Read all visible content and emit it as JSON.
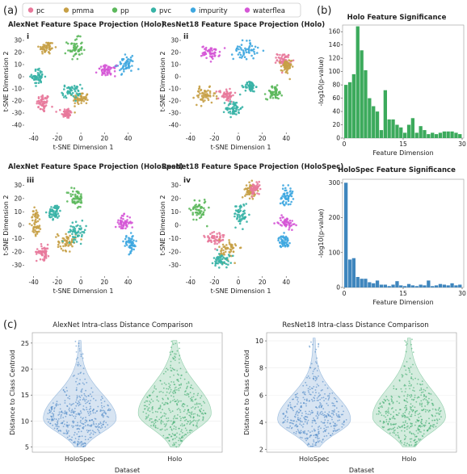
{
  "figure": {
    "panel_labels": [
      "(a)",
      "(b)",
      "(c)"
    ],
    "legend": [
      {
        "label": "pc",
        "color": "#e8799b"
      },
      {
        "label": "pmma",
        "color": "#c7a046"
      },
      {
        "label": "pp",
        "color": "#5cb85c"
      },
      {
        "label": "pvc",
        "color": "#37b3a6"
      },
      {
        "label": "impurity",
        "color": "#3ea7e0"
      },
      {
        "label": "waterflea",
        "color": "#d557d6"
      }
    ]
  },
  "chart_data": [
    {
      "type": "scatter",
      "title": "AlexNet Feature Space Projection (Holo)",
      "tag": "i",
      "xlabel": "t-SNE Dimension 1",
      "ylabel": "t-SNE Dimension 2",
      "xticks": [
        -40,
        -20,
        0,
        20,
        40
      ],
      "yticks": [
        -40,
        -30,
        -20,
        -10,
        0,
        10,
        20,
        30
      ],
      "xlim": [
        -48,
        52
      ],
      "ylim": [
        -46,
        38
      ],
      "clusters": [
        {
          "class": "pc",
          "cx": -32,
          "cy": -22,
          "sx": 5,
          "sy": 7
        },
        {
          "class": "pc",
          "cx": -12,
          "cy": -30,
          "sx": 4,
          "sy": 4
        },
        {
          "class": "pmma",
          "cx": -29,
          "cy": 24,
          "sx": 6,
          "sy": 5
        },
        {
          "class": "pmma",
          "cx": 0,
          "cy": -18,
          "sx": 6,
          "sy": 5
        },
        {
          "class": "pp",
          "cx": -5,
          "cy": 23,
          "sx": 6,
          "sy": 8
        },
        {
          "class": "pvc",
          "cx": -36,
          "cy": 0,
          "sx": 5,
          "sy": 6
        },
        {
          "class": "pvc",
          "cx": -8,
          "cy": -12,
          "sx": 7,
          "sy": 5
        },
        {
          "class": "impurity",
          "cx": 38,
          "cy": 10,
          "sx": 7,
          "sy": 6
        },
        {
          "class": "waterflea",
          "cx": 22,
          "cy": 5,
          "sx": 7,
          "sy": 4
        }
      ]
    },
    {
      "type": "scatter",
      "title": "ResNet18 Feature Space Projection (Holo)",
      "tag": "ii",
      "xlabel": "t-SNE Dimension 1",
      "ylabel": "t-SNE Dimension 2",
      "xticks": [
        -40,
        -20,
        0,
        20,
        40
      ],
      "yticks": [
        -40,
        -30,
        -20,
        -10,
        0,
        10,
        20,
        30
      ],
      "xlim": [
        -48,
        52
      ],
      "ylim": [
        -46,
        38
      ],
      "clusters": [
        {
          "class": "waterflea",
          "cx": -23,
          "cy": 20,
          "sx": 7,
          "sy": 5
        },
        {
          "class": "impurity",
          "cx": 6,
          "cy": 22,
          "sx": 9,
          "sy": 7
        },
        {
          "class": "pc",
          "cx": 38,
          "cy": 14,
          "sx": 5,
          "sy": 5
        },
        {
          "class": "pmma",
          "cx": 40,
          "cy": 8,
          "sx": 4,
          "sy": 6
        },
        {
          "class": "pp",
          "cx": 30,
          "cy": -13,
          "sx": 6,
          "sy": 5
        },
        {
          "class": "pmma",
          "cx": -28,
          "cy": -16,
          "sx": 8,
          "sy": 6
        },
        {
          "class": "pc",
          "cx": -10,
          "cy": -15,
          "sx": 6,
          "sy": 5
        },
        {
          "class": "pvc",
          "cx": -4,
          "cy": -26,
          "sx": 6,
          "sy": 6
        },
        {
          "class": "pvc",
          "cx": 10,
          "cy": -8,
          "sx": 4,
          "sy": 4
        }
      ]
    },
    {
      "type": "scatter",
      "title": "AlexNet Feature Space Projection (HoloSpec)",
      "tag": "iii",
      "xlabel": "t-SNE Dimension 1",
      "ylabel": "t-SNE Dimension 2",
      "xticks": [
        -40,
        -20,
        0,
        20,
        40
      ],
      "yticks": [
        -30,
        -20,
        -10,
        0,
        10,
        20,
        30
      ],
      "xlim": [
        -48,
        52
      ],
      "ylim": [
        -38,
        38
      ],
      "clusters": [
        {
          "class": "pp",
          "cx": -4,
          "cy": 20,
          "sx": 6,
          "sy": 7
        },
        {
          "class": "pmma",
          "cx": -38,
          "cy": 2,
          "sx": 4,
          "sy": 10
        },
        {
          "class": "pvc",
          "cx": -22,
          "cy": 10,
          "sx": 5,
          "sy": 5
        },
        {
          "class": "pc",
          "cx": -32,
          "cy": -20,
          "sx": 5,
          "sy": 5
        },
        {
          "class": "pmma",
          "cx": -12,
          "cy": -12,
          "sx": 7,
          "sy": 6
        },
        {
          "class": "pvc",
          "cx": -3,
          "cy": -5,
          "sx": 7,
          "sy": 6
        },
        {
          "class": "waterflea",
          "cx": 36,
          "cy": 2,
          "sx": 6,
          "sy": 5
        },
        {
          "class": "impurity",
          "cx": 42,
          "cy": -14,
          "sx": 5,
          "sy": 6
        }
      ]
    },
    {
      "type": "scatter",
      "title": "ResNet18 Feature Space Projection (HoloSpec)",
      "tag": "iv",
      "xlabel": "t-SNE Dimension 1",
      "ylabel": "t-SNE Dimension 2",
      "xticks": [
        -40,
        -20,
        0,
        20,
        40
      ],
      "yticks": [
        -30,
        -20,
        -10,
        0,
        10,
        20,
        30
      ],
      "xlim": [
        -48,
        52
      ],
      "ylim": [
        -38,
        38
      ],
      "clusters": [
        {
          "class": "pp",
          "cx": -33,
          "cy": 12,
          "sx": 6,
          "sy": 8
        },
        {
          "class": "pmma",
          "cx": 10,
          "cy": 26,
          "sx": 4,
          "sy": 5
        },
        {
          "class": "pc",
          "cx": 14,
          "cy": 27,
          "sx": 4,
          "sy": 4
        },
        {
          "class": "pvc",
          "cx": 2,
          "cy": 8,
          "sx": 5,
          "sy": 8
        },
        {
          "class": "impurity",
          "cx": 40,
          "cy": 22,
          "sx": 5,
          "sy": 6
        },
        {
          "class": "waterflea",
          "cx": 40,
          "cy": 2,
          "sx": 6,
          "sy": 4
        },
        {
          "class": "impurity",
          "cx": 38,
          "cy": -12,
          "sx": 4,
          "sy": 4
        },
        {
          "class": "pc",
          "cx": -20,
          "cy": -10,
          "sx": 8,
          "sy": 6
        },
        {
          "class": "pmma",
          "cx": -8,
          "cy": -18,
          "sx": 7,
          "sy": 7
        },
        {
          "class": "pvc",
          "cx": -14,
          "cy": -26,
          "sx": 6,
          "sy": 5
        }
      ]
    },
    {
      "type": "bar",
      "title": "Holo Feature Significance",
      "xlabel": "Feature Dimension",
      "ylabel": "-log10(p-value)",
      "xticks": [
        0,
        15,
        30
      ],
      "yticks": [
        0,
        20,
        40,
        60,
        80,
        100,
        120,
        140,
        160
      ],
      "ylim": [
        0,
        170
      ],
      "color": "#3caa5c",
      "values": [
        80,
        84,
        96,
        168,
        132,
        102,
        60,
        48,
        40,
        12,
        72,
        28,
        28,
        20,
        16,
        8,
        20,
        30,
        8,
        18,
        12,
        6,
        8,
        6,
        8,
        10,
        10,
        10,
        8,
        6
      ]
    },
    {
      "type": "bar",
      "title": "HoloSpec Feature Significance",
      "xlabel": "Feature Dimension",
      "ylabel": "-log10(p-value)",
      "xticks": [
        0,
        15,
        30
      ],
      "yticks": [
        0,
        100,
        200,
        300
      ],
      "ylim": [
        0,
        310
      ],
      "color": "#3f86bd",
      "values": [
        300,
        80,
        84,
        30,
        25,
        25,
        15,
        12,
        20,
        8,
        8,
        4,
        8,
        18,
        6,
        4,
        10,
        6,
        4,
        8,
        6,
        20,
        4,
        6,
        10,
        8,
        6,
        12,
        6,
        8
      ]
    },
    {
      "type": "violin",
      "title": "AlexNet Intra-class Distance Comparison",
      "xlabel": "Dataset",
      "ylabel": "Distance to Class Centroid",
      "categories": [
        "HoloSpec",
        "Holo"
      ],
      "yticks": [
        5,
        10,
        15,
        20,
        25
      ],
      "ylim": [
        4,
        27
      ],
      "series": [
        {
          "category": "HoloSpec",
          "min": 5,
          "max": 25.5,
          "median": 10.5,
          "q1": 8.5,
          "q3": 12.5,
          "color": "#4a86c5"
        },
        {
          "category": "Holo",
          "min": 5,
          "max": 25.5,
          "median": 11.5,
          "q1": 9.5,
          "q3": 14,
          "color": "#3aaa6a"
        }
      ]
    },
    {
      "type": "violin",
      "title": "ResNet18 Intra-class Distance Comparison",
      "xlabel": "Dataset",
      "ylabel": "Distance to Class Centroid",
      "categories": [
        "HoloSpec",
        "Holo"
      ],
      "yticks": [
        2,
        4,
        6,
        8,
        10
      ],
      "ylim": [
        1.8,
        10.6
      ],
      "series": [
        {
          "category": "HoloSpec",
          "min": 2.2,
          "max": 10.2,
          "median": 4.2,
          "q1": 3.5,
          "q3": 5.0,
          "color": "#4a86c5"
        },
        {
          "category": "Holo",
          "min": 2.2,
          "max": 10.2,
          "median": 4.4,
          "q1": 3.6,
          "q3": 5.3,
          "color": "#3aaa6a"
        }
      ]
    }
  ]
}
